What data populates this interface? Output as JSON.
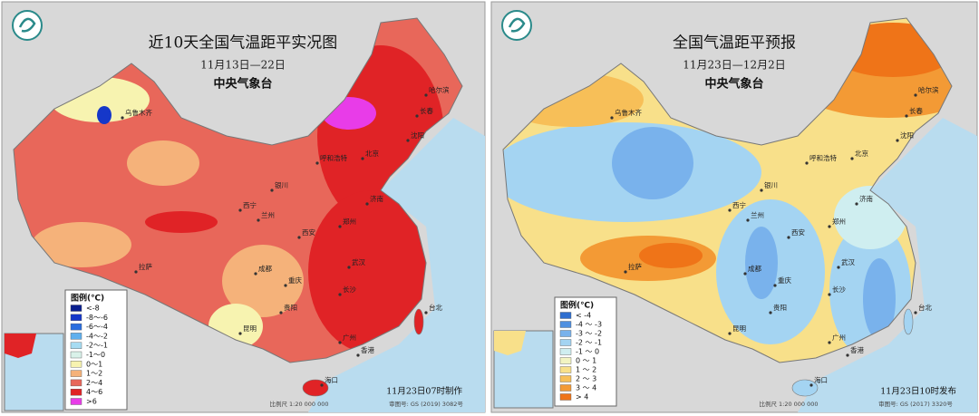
{
  "panels": [
    {
      "title": "近10天全国气温距平实况图",
      "date_range": "11月13日—22日",
      "agency": "中央气象台",
      "legend": {
        "title": "图例(℃)",
        "items": [
          {
            "label": "<-8",
            "color": "#0a1f8f"
          },
          {
            "label": "-8～-6",
            "color": "#1537c9"
          },
          {
            "label": "-6～-4",
            "color": "#2a6ee0"
          },
          {
            "label": "-4～-2",
            "color": "#5fb0ee"
          },
          {
            "label": "-2～-1",
            "color": "#a6dcf2"
          },
          {
            "label": "-1～0",
            "color": "#d9f1e9"
          },
          {
            "label": "0～1",
            "color": "#f7f3b0"
          },
          {
            "label": "1～2",
            "color": "#f5b27a"
          },
          {
            "label": "2～4",
            "color": "#e8675a"
          },
          {
            "label": "4～6",
            "color": "#e02326"
          },
          {
            "label": ">6",
            "color": "#e83ce8"
          }
        ]
      },
      "issue_note": "11月23日07时制作",
      "scale": "比例尺 1:20 000 000",
      "approval": "审图号: GS (2019) 3082号",
      "cities": [
        "乌鲁木齐",
        "哈尔滨",
        "长春",
        "沈阳",
        "北京",
        "呼和浩特",
        "银川",
        "西宁",
        "兰州",
        "西安",
        "郑州",
        "济南",
        "成都",
        "重庆",
        "武汉",
        "长沙",
        "贵阳",
        "昆明",
        "拉萨",
        "广州",
        "香港",
        "台北",
        "海口"
      ]
    },
    {
      "title": "全国气温距平预报",
      "date_range": "11月23日—12月2日",
      "agency": "中央气象台",
      "legend": {
        "title": "图例(℃)",
        "items": [
          {
            "label": "< -4",
            "color": "#2f6fd0"
          },
          {
            "label": "-4 ～ -3",
            "color": "#4f90e0"
          },
          {
            "label": "-3 ～ -2",
            "color": "#79b2ec"
          },
          {
            "label": "-2 ～ -1",
            "color": "#a4d4f2"
          },
          {
            "label": "-1 ～ 0",
            "color": "#cfeef0"
          },
          {
            "label": "0 ～ 1",
            "color": "#f2f4c2"
          },
          {
            "label": "1 ～ 2",
            "color": "#f8e08a"
          },
          {
            "label": "2 ～ 3",
            "color": "#f7bf58"
          },
          {
            "label": "3 ～ 4",
            "color": "#f39a35"
          },
          {
            "label": "> 4",
            "color": "#ef7418"
          }
        ]
      },
      "issue_note": "11月23日10时发布",
      "scale": "比例尺 1:20 000 000",
      "approval": "审图号: GS (2017) 3320号",
      "cities": [
        "乌鲁木齐",
        "哈尔滨",
        "长春",
        "沈阳",
        "北京",
        "呼和浩特",
        "银川",
        "西宁",
        "兰州",
        "西安",
        "郑州",
        "济南",
        "成都",
        "重庆",
        "武汉",
        "长沙",
        "贵阳",
        "昆明",
        "拉萨",
        "广州",
        "香港",
        "台北",
        "海口"
      ]
    }
  ]
}
